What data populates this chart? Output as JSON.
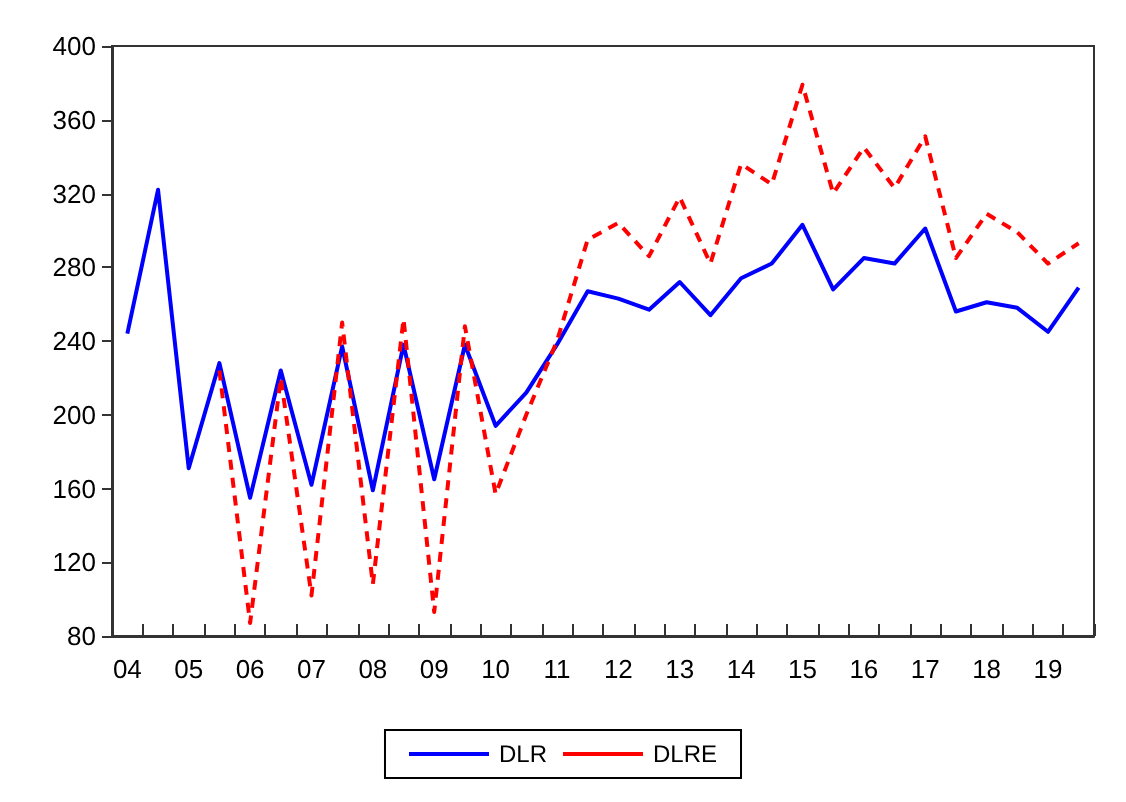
{
  "chart_data": {
    "type": "line",
    "categories": [
      "04",
      null,
      "05",
      null,
      "06",
      null,
      "07",
      null,
      "08",
      null,
      "09",
      null,
      "10",
      null,
      "11",
      null,
      "12",
      null,
      "13",
      null,
      "14",
      null,
      "15",
      null,
      "16",
      null,
      "17",
      null,
      "18",
      null,
      "19",
      null
    ],
    "series": [
      {
        "name": "DLR",
        "color": "#0000ff",
        "line_style": "solid",
        "values": [
          244,
          322,
          171,
          228,
          155,
          224,
          162,
          237,
          159,
          238,
          165,
          238,
          194,
          212,
          238,
          267,
          263,
          257,
          272,
          254,
          274,
          282,
          303,
          268,
          285,
          282,
          301,
          256,
          261,
          258,
          245,
          269
        ]
      },
      {
        "name": "DLRE",
        "color": "#ff0000",
        "line_style": "dashed",
        "values": [
          null,
          null,
          null,
          224,
          87,
          220,
          102,
          250,
          108,
          252,
          93,
          248,
          157,
          200,
          240,
          295,
          304,
          286,
          318,
          282,
          336,
          325,
          379,
          320,
          345,
          323,
          351,
          285,
          309,
          299,
          282,
          293
        ]
      }
    ],
    "ylim": [
      80,
      400
    ],
    "yticks": [
      80,
      120,
      160,
      200,
      240,
      280,
      320,
      360,
      400
    ],
    "grid": false,
    "legend": "bottom",
    "marker": "none"
  }
}
